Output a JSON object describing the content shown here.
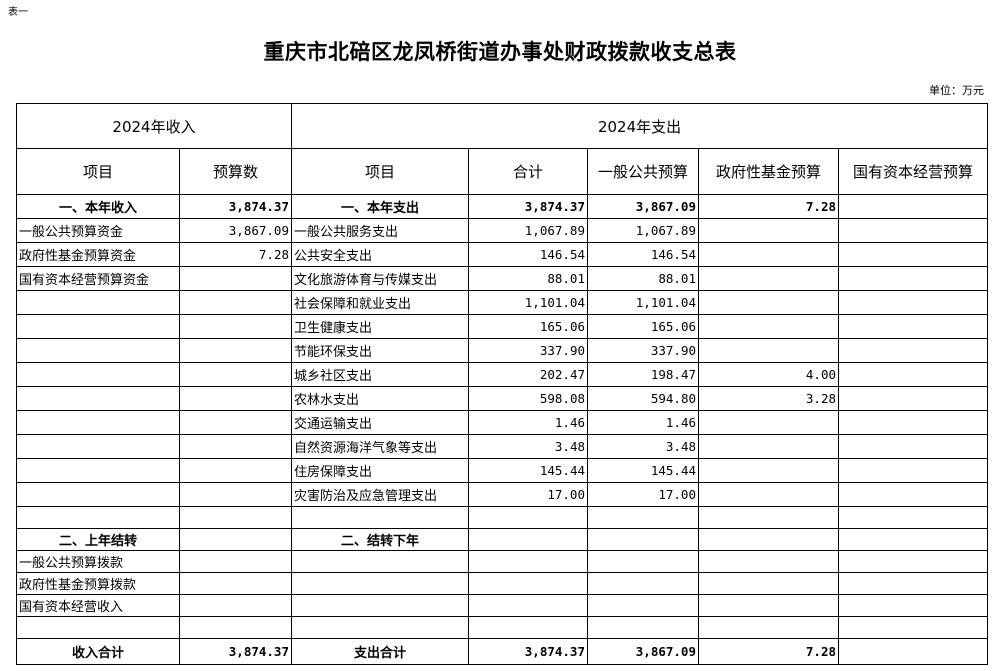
{
  "tag": "表一",
  "title": "重庆市北碚区龙凤桥街道办事处财政拨款收支总表",
  "unit": "单位：万元",
  "header1": [
    "2024年收入",
    "2024年支出"
  ],
  "header2": [
    "项目",
    "预算数",
    "项目",
    "合计",
    "一般公共预算",
    "政府性基金预算",
    "国有资本经营预算"
  ],
  "rows": [
    [
      "一、本年收入",
      "3,874.37",
      "一、本年支出",
      "3,874.37",
      "3,867.09",
      "7.28",
      ""
    ],
    [
      "一般公共预算资金",
      "3,867.09",
      "一般公共服务支出",
      "1,067.89",
      "1,067.89",
      "",
      ""
    ],
    [
      "政府性基金预算资金",
      "7.28",
      "公共安全支出",
      "146.54",
      "146.54",
      "",
      ""
    ],
    [
      "国有资本经营预算资金",
      "",
      "文化旅游体育与传媒支出",
      "88.01",
      "88.01",
      "",
      ""
    ],
    [
      "",
      "",
      "社会保障和就业支出",
      "1,101.04",
      "1,101.04",
      "",
      ""
    ],
    [
      "",
      "",
      "卫生健康支出",
      "165.06",
      "165.06",
      "",
      ""
    ],
    [
      "",
      "",
      "节能环保支出",
      "337.90",
      "337.90",
      "",
      ""
    ],
    [
      "",
      "",
      "城乡社区支出",
      "202.47",
      "198.47",
      "4.00",
      ""
    ],
    [
      "",
      "",
      "农林水支出",
      "598.08",
      "594.80",
      "3.28",
      ""
    ],
    [
      "",
      "",
      "交通运输支出",
      "1.46",
      "1.46",
      "",
      ""
    ],
    [
      "",
      "",
      "自然资源海洋气象等支出",
      "3.48",
      "3.48",
      "",
      ""
    ],
    [
      "",
      "",
      "住房保障支出",
      "145.44",
      "145.44",
      "",
      ""
    ],
    [
      "",
      "",
      "灾害防治及应急管理支出",
      "17.00",
      "17.00",
      "",
      ""
    ],
    [
      "",
      "",
      "",
      "",
      "",
      "",
      ""
    ],
    [
      "二、上年结转",
      "",
      "二、结转下年",
      "",
      "",
      "",
      ""
    ],
    [
      "一般公共预算拨款",
      "",
      "",
      "",
      "",
      "",
      ""
    ],
    [
      "政府性基金预算拨款",
      "",
      "",
      "",
      "",
      "",
      ""
    ],
    [
      "国有资本经营收入",
      "",
      "",
      "",
      "",
      "",
      ""
    ],
    [
      "",
      "",
      "",
      "",
      "",
      "",
      ""
    ],
    [
      "收入合计",
      "3,874.37",
      "支出合计",
      "3,874.37",
      "3,867.09",
      "7.28",
      ""
    ]
  ]
}
